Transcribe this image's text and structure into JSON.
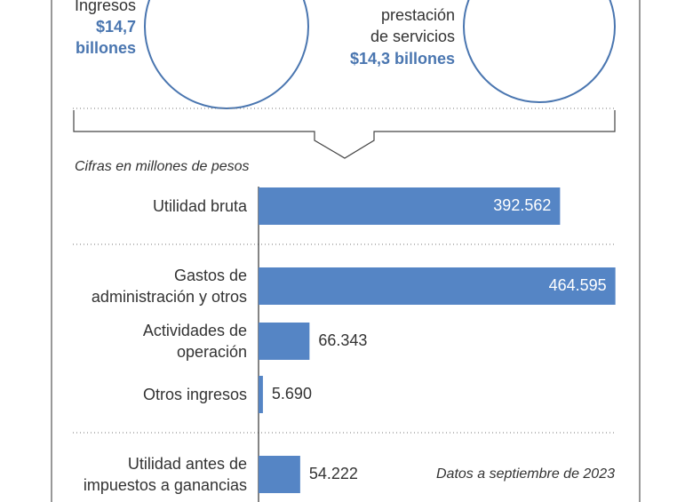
{
  "chart_data": {
    "type": "hbar",
    "annotations": [
      "Ingresos",
      "$14,7",
      "billones",
      "prestación",
      "de servicios",
      "$14,3 billones",
      "Cifras en millones de pesos",
      "Datos a septiembre de 2023"
    ],
    "categories": [
      "Utilidad bruta",
      "Gastos de\nadministración y otros",
      "Actividades de\noperación",
      "Otros ingresos",
      "Utilidad antes de\nimpuestos a ganancias"
    ],
    "values": [
      392562,
      464595,
      66343,
      5690,
      54222
    ],
    "value_labels": [
      "392.562",
      "464.595",
      "66.343",
      "5.690",
      "54.222"
    ],
    "color": "#5585c5",
    "xlim": [
      0,
      465000
    ]
  }
}
